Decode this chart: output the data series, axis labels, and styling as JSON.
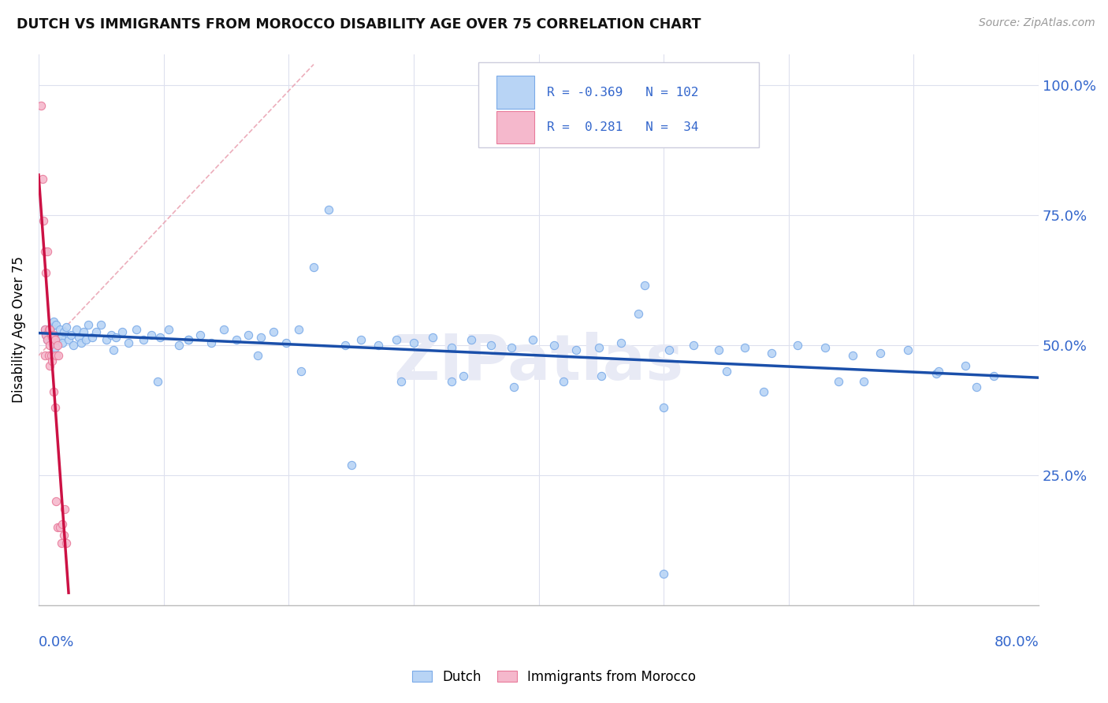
{
  "title": "DUTCH VS IMMIGRANTS FROM MOROCCO DISABILITY AGE OVER 75 CORRELATION CHART",
  "source": "Source: ZipAtlas.com",
  "ylabel": "Disability Age Over 75",
  "xlim": [
    0.0,
    0.8
  ],
  "ylim": [
    0.0,
    1.06
  ],
  "blue_face": "#b8d4f5",
  "blue_edge": "#7aaae8",
  "pink_face": "#f5b8cc",
  "pink_edge": "#e87a9a",
  "trend_blue": "#1a4faa",
  "trend_pink": "#cc1144",
  "dash_color": "#e899aa",
  "watermark_color": "#e8eaf5",
  "right_tick_color": "#3366cc",
  "title_color": "#111111",
  "source_color": "#999999",
  "grid_color": "#dde0ee",
  "dutch_x": [
    0.005,
    0.006,
    0.007,
    0.008,
    0.009,
    0.01,
    0.011,
    0.012,
    0.013,
    0.014,
    0.015,
    0.016,
    0.017,
    0.018,
    0.019,
    0.02,
    0.022,
    0.024,
    0.026,
    0.028,
    0.03,
    0.032,
    0.034,
    0.036,
    0.038,
    0.04,
    0.043,
    0.046,
    0.05,
    0.054,
    0.058,
    0.062,
    0.067,
    0.072,
    0.078,
    0.084,
    0.09,
    0.097,
    0.104,
    0.112,
    0.12,
    0.129,
    0.138,
    0.148,
    0.158,
    0.168,
    0.178,
    0.188,
    0.198,
    0.208,
    0.22,
    0.232,
    0.245,
    0.258,
    0.272,
    0.286,
    0.3,
    0.315,
    0.33,
    0.346,
    0.362,
    0.378,
    0.395,
    0.412,
    0.43,
    0.448,
    0.466,
    0.485,
    0.504,
    0.524,
    0.544,
    0.565,
    0.586,
    0.607,
    0.629,
    0.651,
    0.673,
    0.695,
    0.718,
    0.741,
    0.764,
    0.5,
    0.25,
    0.38,
    0.12,
    0.06,
    0.095,
    0.175,
    0.29,
    0.42,
    0.55,
    0.66,
    0.72,
    0.75,
    0.5,
    0.33,
    0.21,
    0.45,
    0.58,
    0.64,
    0.34,
    0.48
  ],
  "dutch_y": [
    0.53,
    0.52,
    0.51,
    0.525,
    0.515,
    0.535,
    0.505,
    0.545,
    0.495,
    0.54,
    0.51,
    0.52,
    0.53,
    0.515,
    0.505,
    0.525,
    0.535,
    0.51,
    0.52,
    0.5,
    0.53,
    0.515,
    0.505,
    0.525,
    0.51,
    0.54,
    0.515,
    0.525,
    0.54,
    0.51,
    0.52,
    0.515,
    0.525,
    0.505,
    0.53,
    0.51,
    0.52,
    0.515,
    0.53,
    0.5,
    0.51,
    0.52,
    0.505,
    0.53,
    0.51,
    0.52,
    0.515,
    0.525,
    0.505,
    0.53,
    0.65,
    0.76,
    0.5,
    0.51,
    0.5,
    0.51,
    0.505,
    0.515,
    0.495,
    0.51,
    0.5,
    0.495,
    0.51,
    0.5,
    0.49,
    0.495,
    0.505,
    0.615,
    0.49,
    0.5,
    0.49,
    0.495,
    0.485,
    0.5,
    0.495,
    0.48,
    0.485,
    0.49,
    0.445,
    0.46,
    0.44,
    0.06,
    0.27,
    0.42,
    0.51,
    0.49,
    0.43,
    0.48,
    0.43,
    0.43,
    0.45,
    0.43,
    0.45,
    0.42,
    0.38,
    0.43,
    0.45,
    0.44,
    0.41,
    0.43,
    0.44,
    0.56
  ],
  "morocco_x": [
    0.002,
    0.003,
    0.004,
    0.005,
    0.005,
    0.005,
    0.006,
    0.006,
    0.007,
    0.007,
    0.008,
    0.008,
    0.009,
    0.009,
    0.009,
    0.01,
    0.01,
    0.011,
    0.011,
    0.012,
    0.012,
    0.013,
    0.013,
    0.014,
    0.014,
    0.015,
    0.015,
    0.016,
    0.017,
    0.018,
    0.019,
    0.02,
    0.021,
    0.022
  ],
  "morocco_y": [
    0.96,
    0.82,
    0.74,
    0.68,
    0.53,
    0.48,
    0.64,
    0.52,
    0.68,
    0.51,
    0.53,
    0.48,
    0.53,
    0.5,
    0.46,
    0.52,
    0.48,
    0.515,
    0.47,
    0.52,
    0.41,
    0.51,
    0.38,
    0.48,
    0.2,
    0.5,
    0.15,
    0.48,
    0.15,
    0.12,
    0.155,
    0.135,
    0.185,
    0.12
  ]
}
